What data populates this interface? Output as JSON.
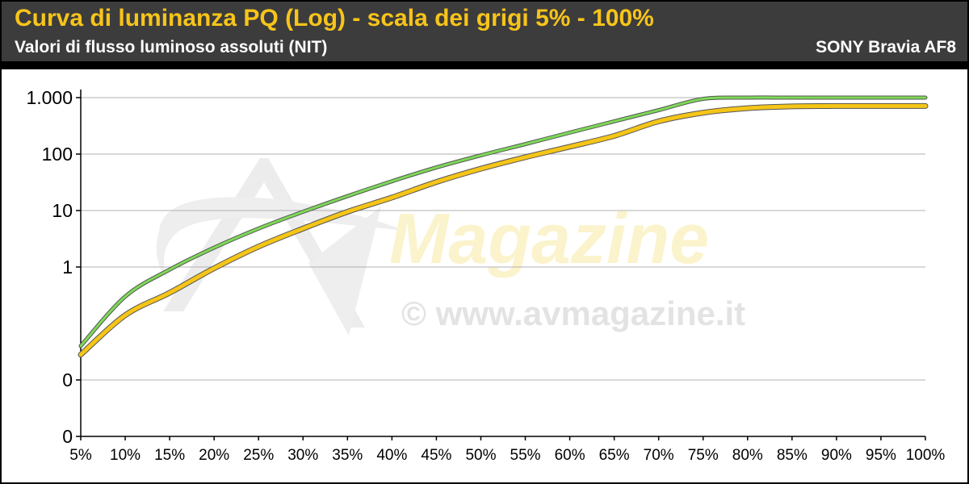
{
  "header": {
    "title": "Curva di luminanza PQ (Log) - scala dei grigi 5% - 100%",
    "subtitle": "Valori di flusso luminoso assoluti (NIT)",
    "model": "SONY Bravia AF8"
  },
  "watermark": {
    "logo_text": "Magazine",
    "url": "© www.avmagazine.it"
  },
  "colors": {
    "header_bg": "#3c3c3c",
    "title": "#f7c41a",
    "target_series": "#7ed957",
    "measured_series": "#f5c518",
    "grid": "#b0b0b0"
  },
  "chart_data": {
    "type": "line",
    "title": "Curva di luminanza PQ (Log) - scala dei grigi 5% - 100%",
    "subtitle": "Valori di flusso luminoso assoluti (NIT)",
    "y_scale": "log",
    "ylim": [
      0.001,
      1000
    ],
    "grid": "horizontal",
    "x_tick_labels": [
      "5%",
      "10%",
      "15%",
      "20%",
      "25%",
      "30%",
      "35%",
      "40%",
      "45%",
      "50%",
      "55%",
      "60%",
      "65%",
      "70%",
      "75%",
      "80%",
      "85%",
      "90%",
      "95%",
      "100%"
    ],
    "y_ticks": [
      0.001,
      0.01,
      1,
      10,
      100,
      1000
    ],
    "y_tick_labels": [
      "0",
      "0",
      "1",
      "10",
      "100",
      "1.000"
    ],
    "x": [
      5,
      10,
      15,
      20,
      25,
      30,
      35,
      40,
      45,
      50,
      55,
      60,
      65,
      70,
      75,
      80,
      85,
      90,
      95,
      100
    ],
    "series": [
      {
        "color": "#7ed957",
        "values": [
          0.04,
          0.3,
          0.9,
          2.2,
          4.8,
          9.5,
          18,
          33,
          58,
          95,
          150,
          240,
          380,
          600,
          950,
          1000,
          1000,
          1000,
          1000,
          1000
        ]
      },
      {
        "color": "#f5c518",
        "values": [
          0.028,
          0.14,
          0.35,
          0.95,
          2.3,
          4.8,
          9.5,
          17,
          32,
          55,
          88,
          135,
          210,
          380,
          540,
          650,
          700,
          710,
          710,
          710
        ]
      }
    ]
  }
}
